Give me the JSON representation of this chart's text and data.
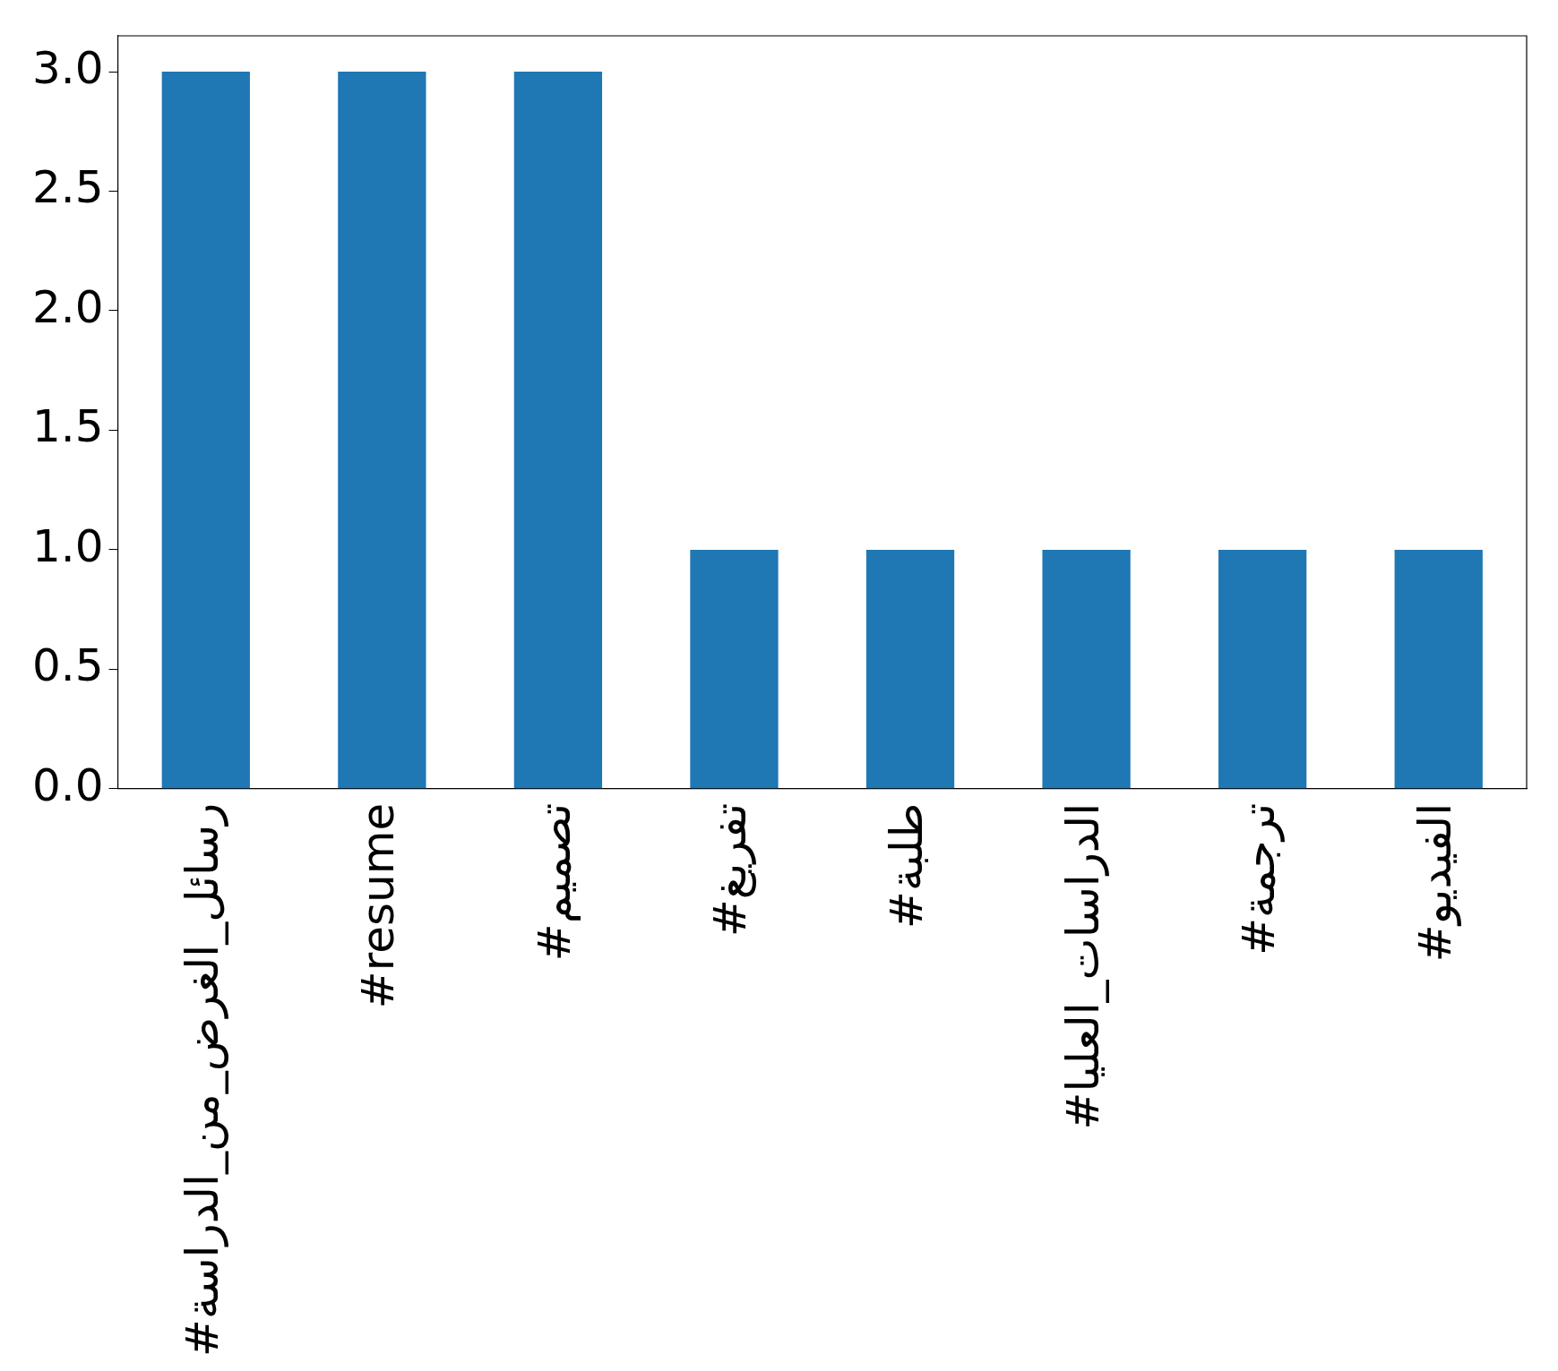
{
  "chart_data": {
    "type": "bar",
    "categories": [
      "#رسائل_الغرض_من_الدراسة",
      "#resume",
      "#تصميم",
      "#تفريغ",
      "#طلبة",
      "#الدراسات_العليا",
      "#ترجمة",
      "#الفيديو"
    ],
    "values": [
      3,
      3,
      3,
      1,
      1,
      1,
      1,
      1
    ],
    "color": "#1f77b4",
    "ylim": [
      0,
      3.15
    ],
    "yticks": [
      {
        "value": 0,
        "label": "0.0"
      },
      {
        "value": 0.5,
        "label": "0.5"
      },
      {
        "value": 1,
        "label": "1.0"
      },
      {
        "value": 1.5,
        "label": "1.5"
      },
      {
        "value": 2,
        "label": "2.0"
      },
      {
        "value": 2.5,
        "label": "2.5"
      },
      {
        "value": 3,
        "label": "3.0"
      }
    ],
    "grid": false,
    "legend": false
  }
}
